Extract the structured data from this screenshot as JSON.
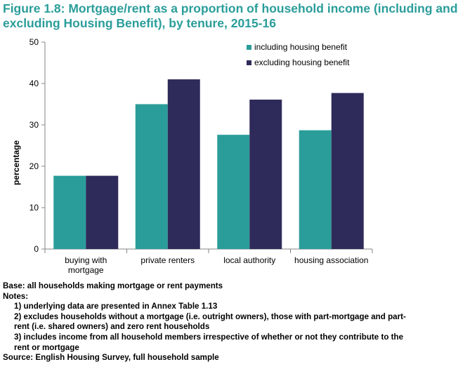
{
  "figure": {
    "title_line1": "Figure 1.8: Mortgage/rent as a proportion of household income (including and",
    "title_line2": "excluding Housing Benefit), by tenure, 2015-16",
    "title_color": "#2a9d9a"
  },
  "chart_data": {
    "type": "bar",
    "ylabel": "percentage",
    "xlabel": "",
    "ylim": [
      0,
      50
    ],
    "yticks": [
      "0",
      "10",
      "20",
      "30",
      "40",
      "50"
    ],
    "categories": [
      "buying with mortgage",
      "private renters",
      "local authority",
      "housing association"
    ],
    "category_lines": [
      [
        "buying with",
        "mortgage"
      ],
      [
        "private renters"
      ],
      [
        "local authority"
      ],
      [
        "housing association"
      ]
    ],
    "series": [
      {
        "name": "including housing benefit",
        "color": "#2a9d9a",
        "values": [
          17.7,
          35.0,
          27.6,
          28.7
        ]
      },
      {
        "name": "excluding housing benefit",
        "color": "#2e2b5a",
        "values": [
          17.7,
          41.0,
          36.1,
          37.7
        ]
      }
    ],
    "legend_position": "top-right",
    "grid": false
  },
  "notes": {
    "base": "Base: all households making mortgage or rent payments",
    "heading": "Notes:",
    "n1": "1) underlying data are presented in Annex Table 1.13",
    "n2a": "2) excludes households without a mortgage (i.e. outright owners), those with part-mortgage and part-",
    "n2b": "rent (i.e. shared owners) and zero rent households",
    "n3a": "3) includes income from all household members irrespective of whether or not they contribute to the",
    "n3b": "rent or mortgage",
    "source": "Source: English Housing Survey, full household sample"
  }
}
